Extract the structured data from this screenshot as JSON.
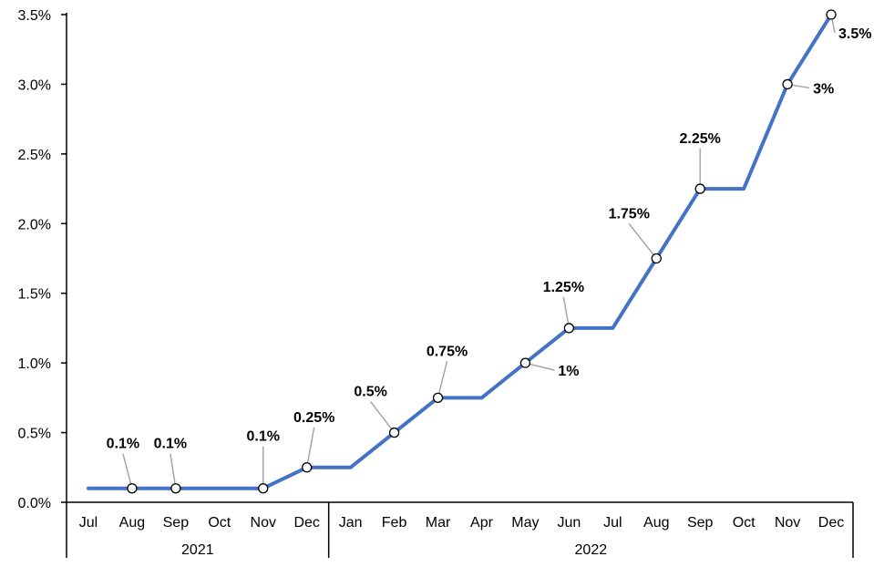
{
  "chart_data": {
    "type": "line",
    "categories": [
      "Jul",
      "Aug",
      "Sep",
      "Oct",
      "Nov",
      "Dec",
      "Jan",
      "Feb",
      "Mar",
      "Apr",
      "May",
      "Jun",
      "Jul",
      "Aug",
      "Sep",
      "Oct",
      "Nov",
      "Dec"
    ],
    "year_groups": [
      {
        "label": "2021",
        "count": 6
      },
      {
        "label": "2022",
        "count": 12
      }
    ],
    "series": [
      {
        "values": [
          0.1,
          0.1,
          0.1,
          0.1,
          0.1,
          0.25,
          0.25,
          0.5,
          0.75,
          0.75,
          1.0,
          1.25,
          1.25,
          1.75,
          2.25,
          2.25,
          3.0,
          3.5
        ]
      }
    ],
    "ylim": [
      0,
      3.5
    ],
    "yticks": [
      "0.0%",
      "0.5%",
      "1.0%",
      "1.5%",
      "2.0%",
      "2.5%",
      "3.0%",
      "3.5%"
    ],
    "data_labels": [
      {
        "index": 1,
        "text": "0.1%"
      },
      {
        "index": 2,
        "text": "0.1%"
      },
      {
        "index": 4,
        "text": "0.1%"
      },
      {
        "index": 5,
        "text": "0.25%"
      },
      {
        "index": 7,
        "text": "0.5%"
      },
      {
        "index": 8,
        "text": "0.75%"
      },
      {
        "index": 10,
        "text": "1%"
      },
      {
        "index": 11,
        "text": "1.25%"
      },
      {
        "index": 13,
        "text": "1.75%"
      },
      {
        "index": 14,
        "text": "2.25%"
      },
      {
        "index": 16,
        "text": "3%"
      },
      {
        "index": 17,
        "text": "3.5%"
      }
    ],
    "line_color": "#4472C4",
    "grid": false
  }
}
